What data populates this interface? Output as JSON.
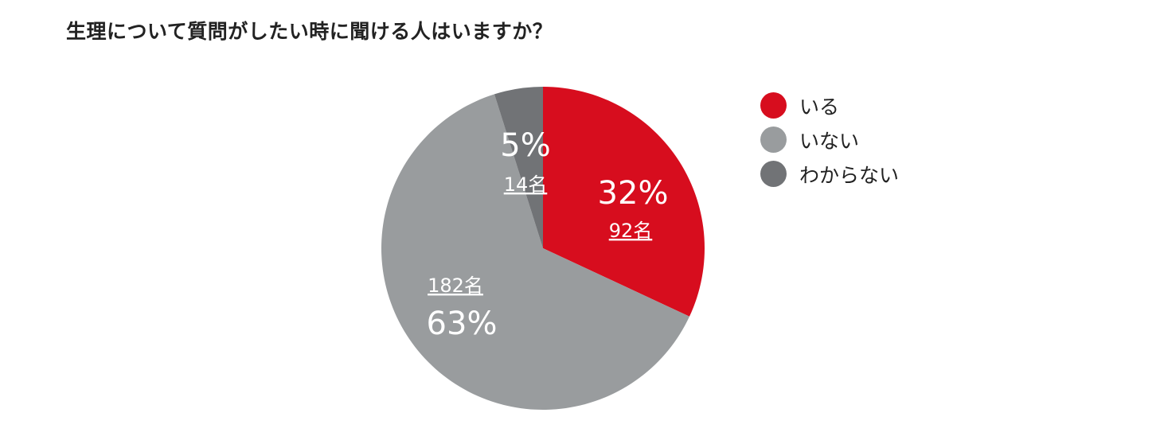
{
  "chart_data": {
    "type": "pie",
    "title": "生理について質問がしたい時に聞ける人はいますか？",
    "slices": [
      {
        "label": "いる",
        "percent_label": "32%",
        "count_label": "92名",
        "count": 92,
        "color": "#d70d1e"
      },
      {
        "label": "いない",
        "percent_label": "63%",
        "count_label": "182名",
        "count": 182,
        "color": "#999c9e"
      },
      {
        "label": "わからない",
        "percent_label": "5%",
        "count_label": "14名",
        "count": 14,
        "color": "#717376"
      }
    ],
    "legend_position": "right"
  }
}
